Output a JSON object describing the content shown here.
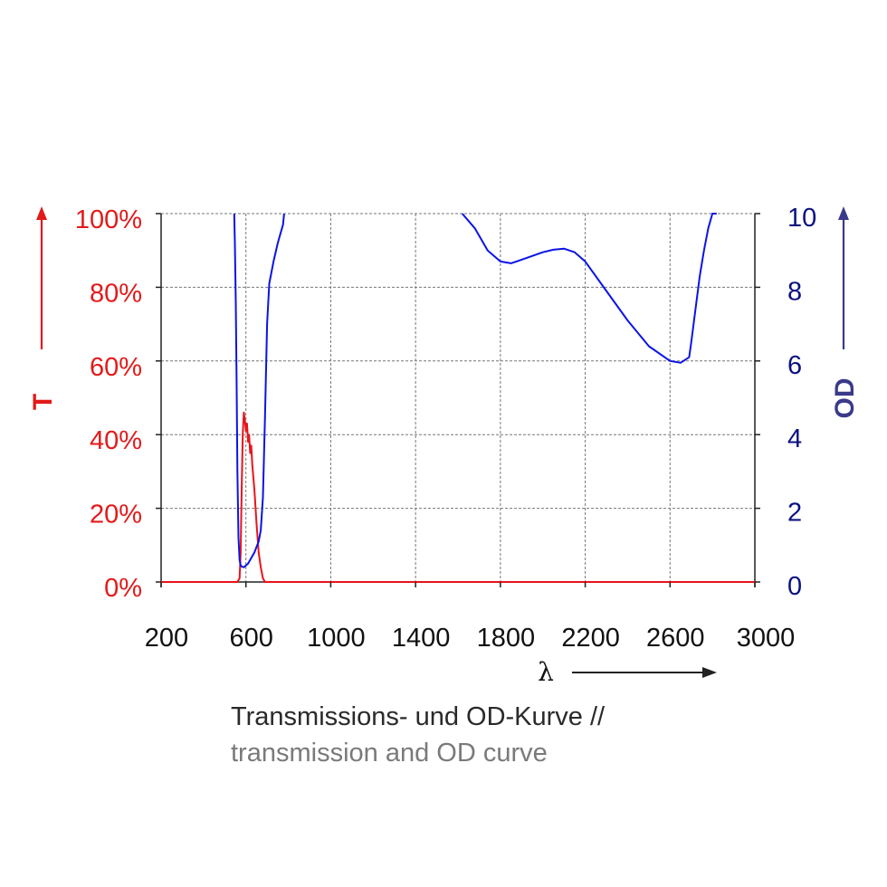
{
  "chart_data": {
    "type": "line",
    "xlim": [
      200,
      3000
    ],
    "x_ticks": [
      200,
      600,
      1000,
      1400,
      1800,
      2200,
      2600,
      3000
    ],
    "x_tick_labels": [
      "200",
      "600",
      "1000",
      "1400",
      "1800",
      "2200",
      "2600",
      "3000"
    ],
    "xlabel": "λ",
    "left_axis": {
      "label": "T",
      "ylim": [
        0,
        100
      ],
      "ticks": [
        0,
        20,
        40,
        60,
        80,
        100
      ],
      "tick_labels": [
        "0%",
        "20%",
        "40%",
        "60%",
        "80%",
        "100%"
      ],
      "color": "#e21a1a"
    },
    "right_axis": {
      "label": "OD",
      "ylim": [
        0,
        10
      ],
      "ticks": [
        0,
        2,
        4,
        6,
        8,
        10
      ],
      "tick_labels": [
        "0",
        "2",
        "4",
        "6",
        "8",
        "10"
      ],
      "color": "#0b1280",
      "arrow_color": "#3a3a8a"
    },
    "grid": true,
    "series": [
      {
        "axis": "left",
        "color": "#e8141a",
        "x": [
          200,
          560,
          570,
          575,
          580,
          585,
          590,
          595,
          600,
          605,
          610,
          615,
          620,
          625,
          630,
          640,
          650,
          660,
          670,
          680,
          690,
          3000
        ],
        "y": [
          0,
          0,
          1,
          8,
          25,
          40,
          46,
          44,
          41,
          43,
          38,
          40,
          35,
          37,
          32,
          25,
          16,
          8,
          4,
          1,
          0,
          0
        ]
      },
      {
        "axis": "right",
        "color": "#0a14e6",
        "segments": [
          {
            "x": [
              545,
              548,
              552,
              556,
              560,
              565,
              570,
              575,
              580,
              590,
              600,
              610,
              620,
              630,
              640,
              650,
              660,
              670,
              680,
              690,
              700,
              710,
              730,
              750,
              760,
              775,
              780
            ],
            "y": [
              10.0,
              9.2,
              7.6,
              5.5,
              3.0,
              1.2,
              0.6,
              0.45,
              0.42,
              0.4,
              0.45,
              0.5,
              0.6,
              0.7,
              0.8,
              0.95,
              1.1,
              1.4,
              2.3,
              4.5,
              7.0,
              8.1,
              8.7,
              9.2,
              9.4,
              9.7,
              10.0
            ]
          },
          {
            "x": [
              1620,
              1680,
              1740,
              1800,
              1850,
              1900,
              1950,
              2000,
              2050,
              2100,
              2150,
              2200,
              2300,
              2400,
              2500,
              2600,
              2650,
              2690,
              2700,
              2720,
              2740,
              2760,
              2780,
              2800,
              2820
            ],
            "y": [
              10.0,
              9.6,
              9.0,
              8.7,
              8.65,
              8.75,
              8.85,
              8.95,
              9.02,
              9.05,
              8.95,
              8.7,
              7.9,
              7.1,
              6.4,
              6.0,
              5.95,
              6.1,
              6.5,
              7.4,
              8.3,
              9.0,
              9.6,
              10.0,
              10.0
            ]
          }
        ]
      }
    ]
  },
  "caption": {
    "de": "Transmissions- und OD-Kurve //",
    "en": "transmission and OD curve"
  }
}
